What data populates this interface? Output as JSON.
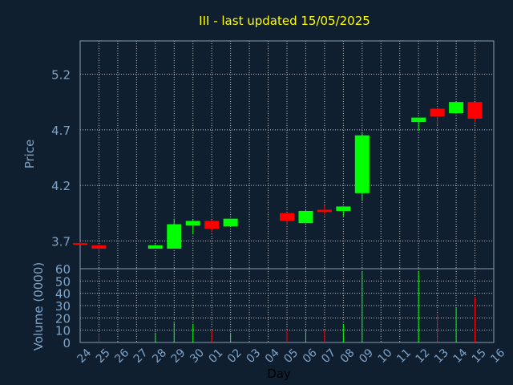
{
  "title": "III - last updated 15/05/2025",
  "colors": {
    "background": "#0f1f30",
    "up": "#00ff00",
    "down": "#ff0000",
    "title": "#ffff00",
    "axis_text": "#7fa3c6",
    "grid": "#ffffff"
  },
  "chart_data": [
    {
      "type": "candlestick",
      "ylabel": "Price",
      "ylim": [
        3.45,
        5.5
      ],
      "yticks": [
        "3.7",
        "4.2",
        "4.7",
        "5.2"
      ],
      "ytick_values": [
        3.7,
        4.2,
        4.7,
        5.2
      ],
      "grid": true,
      "series": [
        {
          "day": "24",
          "open": 3.68,
          "high": 3.69,
          "low": 3.67,
          "close": 3.67
        },
        {
          "day": "25",
          "open": 3.66,
          "high": 3.67,
          "low": 3.59,
          "close": 3.63
        },
        {
          "day": "28",
          "open": 3.63,
          "high": 3.67,
          "low": 3.63,
          "close": 3.66
        },
        {
          "day": "29",
          "open": 3.63,
          "high": 3.9,
          "low": 3.63,
          "close": 3.85
        },
        {
          "day": "30",
          "open": 3.84,
          "high": 3.89,
          "low": 3.76,
          "close": 3.88
        },
        {
          "day": "01",
          "open": 3.88,
          "high": 3.89,
          "low": 3.78,
          "close": 3.81
        },
        {
          "day": "02",
          "open": 3.83,
          "high": 3.9,
          "low": 3.83,
          "close": 3.9
        },
        {
          "day": "05",
          "open": 3.95,
          "high": 3.95,
          "low": 3.85,
          "close": 3.88
        },
        {
          "day": "06",
          "open": 3.86,
          "high": 3.98,
          "low": 3.86,
          "close": 3.97
        },
        {
          "day": "07",
          "open": 3.98,
          "high": 4.02,
          "low": 3.93,
          "close": 3.96
        },
        {
          "day": "08",
          "open": 3.97,
          "high": 4.01,
          "low": 3.92,
          "close": 4.01
        },
        {
          "day": "09",
          "open": 4.13,
          "high": 4.68,
          "low": 4.06,
          "close": 4.65
        },
        {
          "day": "12",
          "open": 4.77,
          "high": 4.81,
          "low": 4.69,
          "close": 4.81
        },
        {
          "day": "13",
          "open": 4.89,
          "high": 4.9,
          "low": 4.74,
          "close": 4.82
        },
        {
          "day": "14",
          "open": 4.85,
          "high": 4.95,
          "low": 4.85,
          "close": 4.95
        },
        {
          "day": "15",
          "open": 4.95,
          "high": 4.95,
          "low": 4.77,
          "close": 4.8
        }
      ]
    },
    {
      "type": "bar",
      "ylabel": "Volume (0000)",
      "xlabel": "Day",
      "ylim": [
        0,
        60
      ],
      "yticks": [
        "0",
        "10",
        "20",
        "30",
        "40",
        "50",
        "60"
      ],
      "ytick_values": [
        0,
        10,
        20,
        30,
        40,
        50,
        60
      ],
      "grid": true,
      "categories": [
        "24",
        "25",
        "26",
        "27",
        "28",
        "29",
        "30",
        "01",
        "02",
        "03",
        "04",
        "05",
        "06",
        "07",
        "08",
        "09",
        "10",
        "11",
        "12",
        "13",
        "14",
        "15",
        "16"
      ],
      "values": [
        0,
        7,
        0,
        0,
        8,
        16,
        15,
        10,
        8,
        0,
        0,
        10,
        10,
        10,
        15,
        58,
        0,
        0,
        58,
        23,
        28,
        37,
        0
      ],
      "direction": [
        "",
        "down",
        "",
        "",
        "up",
        "up",
        "up",
        "down",
        "up",
        "",
        "",
        "down",
        "up",
        "down",
        "up",
        "up",
        "",
        "",
        "up",
        "down",
        "up",
        "down",
        ""
      ]
    }
  ]
}
